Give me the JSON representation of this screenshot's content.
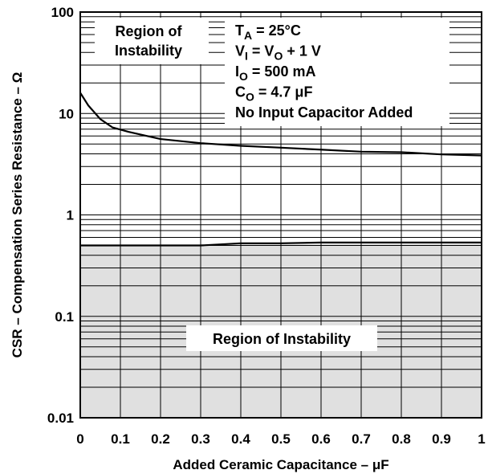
{
  "chart_data": {
    "type": "line",
    "xlabel": "Added Ceramic Capacitance – μF",
    "ylabel": "CSR – Compensation Series Resistance – Ω",
    "xlim": [
      0,
      1
    ],
    "ylim": [
      0.01,
      100
    ],
    "y_scale": "log",
    "grid": true,
    "x_ticks": [
      "0",
      "0.1",
      "0.2",
      "0.3",
      "0.4",
      "0.5",
      "0.6",
      "0.7",
      "0.8",
      "0.9",
      "1"
    ],
    "y_ticks": [
      "0.01",
      "0.1",
      "1",
      "10",
      "100"
    ],
    "upper_boundary": {
      "x": [
        0,
        0.02,
        0.05,
        0.08,
        0.12,
        0.2,
        0.3,
        0.4,
        0.5,
        0.6,
        0.7,
        0.8,
        0.9,
        1.0
      ],
      "y": [
        16,
        12,
        8.8,
        7.3,
        6.6,
        5.6,
        5.1,
        4.8,
        4.6,
        4.4,
        4.2,
        4.15,
        3.95,
        3.85
      ]
    },
    "lower_boundary": {
      "x": [
        0,
        0.1,
        0.3,
        0.4,
        0.5,
        0.6,
        0.7,
        0.8,
        0.9,
        1.0
      ],
      "y": [
        0.5,
        0.5,
        0.5,
        0.525,
        0.525,
        0.535,
        0.535,
        0.535,
        0.535,
        0.535
      ]
    },
    "shading_color": "#e0e0e0",
    "annotations": {
      "upper_region_line1": "Region of",
      "upper_region_line2": "Instability",
      "lower_region": "Region of Instability"
    },
    "conditions": [
      {
        "main": "T",
        "sub": "A",
        "rest": " = 25°C"
      },
      {
        "main": "V",
        "sub": "I",
        "rest": " = V",
        "sub2": "O",
        "rest2": " + 1 V"
      },
      {
        "main": "I",
        "sub": "O",
        "rest": " = 500 mA"
      },
      {
        "main": "C",
        "sub": "O",
        "rest": " = 4.7 μF"
      },
      {
        "main": "No Input Capacitor Added",
        "sub": "",
        "rest": ""
      }
    ]
  }
}
